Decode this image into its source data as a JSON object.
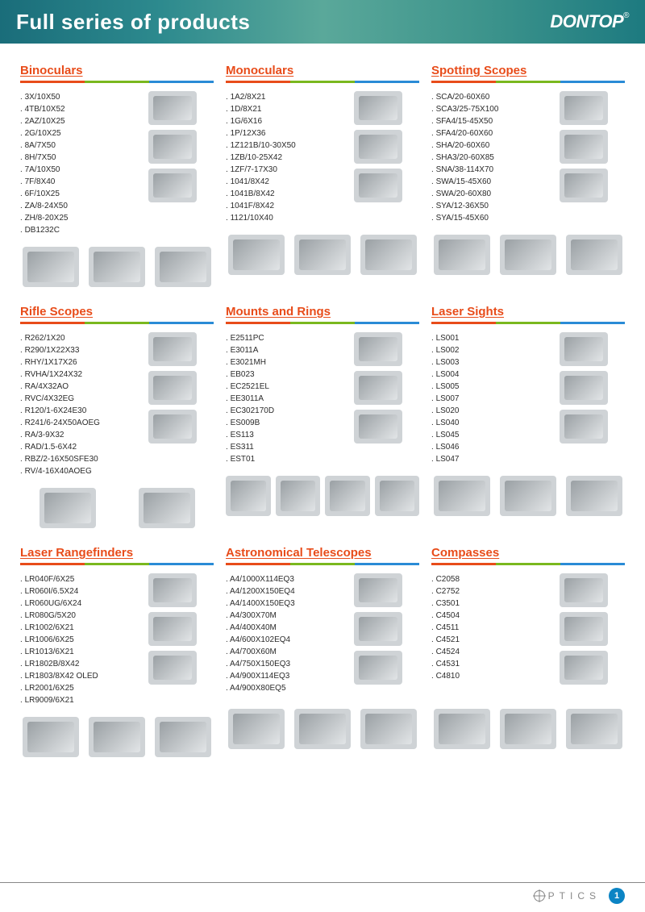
{
  "header": {
    "title": "Full series of products",
    "logo": "DONTOP",
    "logo_suffix": "®"
  },
  "bar_colors": [
    "#e84c1a",
    "#7ab81e",
    "#2a8bd6"
  ],
  "categories": [
    [
      {
        "title": "Binoculars",
        "items": [
          "3X/10X50",
          "4TB/10X52",
          "2AZ/10X25",
          "2G/10X25",
          "8A/7X50",
          "8H/7X50",
          "7A/10X50",
          "7F/8X40",
          "6F/10X25",
          "ZA/8-24X50",
          "ZH/8-20X25",
          "DB1232C"
        ],
        "side_count": 3,
        "bottom_count": 3
      },
      {
        "title": "Monoculars",
        "items": [
          "1A2/8X21",
          "1D/8X21",
          "1G/6X16",
          "1P/12X36",
          "1Z121B/10-30X50",
          "1ZB/10-25X42",
          "1ZF/7-17X30",
          "1041/8X42",
          "1041B/8X42",
          "1041F/8X42",
          "1121/10X40"
        ],
        "side_count": 3,
        "bottom_count": 3
      },
      {
        "title": "Spotting Scopes",
        "items": [
          "SCA/20-60X60",
          "SCA3/25-75X100",
          "SFA4/15-45X50",
          "SFA4/20-60X60",
          "SHA/20-60X60",
          "SHA3/20-60X85",
          "SNA/38-114X70",
          "SWA/15-45X60",
          "SWA/20-60X80",
          "SYA/12-36X50",
          "SYA/15-45X60"
        ],
        "side_count": 3,
        "bottom_count": 3
      }
    ],
    [
      {
        "title": "Rifle Scopes",
        "items": [
          "R262/1X20",
          "R290/1X22X33",
          "RHY/1X17X26",
          "RVHA/1X24X32",
          "RA/4X32AO",
          "RVC/4X32EG",
          "R120/1-6X24E30",
          "R241/6-24X50AOEG",
          "RA/3-9X32",
          "RAD/1.5-6X42",
          "RBZ/2-16X50SFE30",
          "RV/4-16X40AOEG"
        ],
        "side_count": 3,
        "bottom_count": 2
      },
      {
        "title": "Mounts and Rings",
        "items": [
          "E2511PC",
          "E3011A",
          "E3021MH",
          "EB023",
          "EC2521EL",
          "EE3011A",
          "EC302170D",
          "ES009B",
          "ES113",
          "ES311",
          "EST01"
        ],
        "side_count": 3,
        "bottom_count": 4
      },
      {
        "title": "Laser Sights",
        "items": [
          "LS001",
          "LS002",
          "LS003",
          "LS004",
          "LS005",
          "LS007",
          "LS020",
          "LS040",
          "LS045",
          "LS046",
          "LS047"
        ],
        "side_count": 3,
        "bottom_count": 3
      }
    ],
    [
      {
        "title": "Laser Rangefinders",
        "items": [
          "LR040F/6X25",
          "LR060I/6.5X24",
          "LR060UG/6X24",
          "LR080G/5X20",
          "LR1002/6X21",
          "LR1006/6X25",
          "LR1013/6X21",
          "LR1802B/8X42",
          "LR1803/8X42 OLED",
          "LR2001/6X25",
          "LR9009/6X21"
        ],
        "side_count": 3,
        "bottom_count": 3
      },
      {
        "title": "Astronomical Telescopes",
        "items": [
          "A4/1000X114EQ3",
          "A4/1200X150EQ4",
          "A4/1400X150EQ3",
          "A4/300X70M",
          "A4/400X40M",
          "A4/600X102EQ4",
          "A4/700X60M",
          "A4/750X150EQ3",
          "A4/900X114EQ3",
          "A4/900X80EQ5"
        ],
        "side_count": 3,
        "bottom_count": 3
      },
      {
        "title": "Compasses",
        "items": [
          "C2058",
          "C2752",
          "C3501",
          "C4504",
          "C4511",
          "C4521",
          "C4524",
          "C4531",
          "C4810"
        ],
        "side_count": 3,
        "bottom_count": 3
      }
    ]
  ],
  "footer": {
    "label": "PTICS",
    "page": "1"
  }
}
